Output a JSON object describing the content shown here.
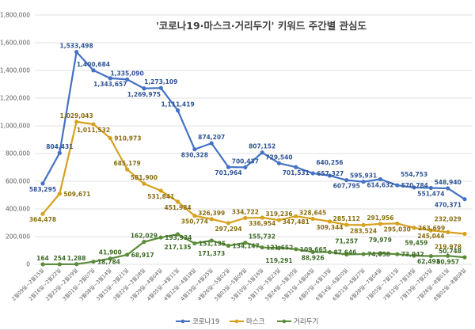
{
  "chart_data": {
    "type": "line",
    "title": "'코로나19·마스크·거리두기' 키워드 주간별 관심도",
    "xlabel": "",
    "ylabel": "",
    "ylim": [
      0,
      1800000
    ],
    "yticks": [
      0,
      200000,
      400000,
      600000,
      800000,
      1000000,
      1200000,
      1400000,
      1600000,
      1800000
    ],
    "ytick_labels": [
      "0",
      "200,000",
      "400,000",
      "600,000",
      "800,000",
      "1,000,000",
      "1,200,000",
      "1,400,000",
      "1,600,000",
      "1,800,000"
    ],
    "grid": "horizontal",
    "legend_position": "bottom",
    "categories": [
      "2월09일~2월15일",
      "2월16일~2월22일",
      "2월23일~2월29일",
      "3월01일~3월07일",
      "3월08일~3월14일",
      "3월15일~3월21일",
      "3월22일~3월28일",
      "3월29일~4월04일",
      "4월05일~4월11일",
      "4월12일~4월18일",
      "4월19일~4월25일",
      "4월26일~5월02일",
      "5월03일~5월09일",
      "5월10일~5월16일",
      "5월17일~5월23일",
      "5월24일~5월30일",
      "5월31일~6월06일",
      "6월07일~6월13일",
      "6월14일~6월20일",
      "6월21일~6월27일",
      "6월28일~7월04일",
      "7월05일~7월11일",
      "7월12일~7월18일",
      "7월19일~7월25일",
      "7월26일~8월01일",
      "8월02일~8월08일"
    ],
    "series": [
      {
        "name": "코로나19",
        "color": "#4472C4",
        "label_color": "#2F5496",
        "values": [
          583295,
          804431,
          1533498,
          1400684,
          1343657,
          1335090,
          1269975,
          1273109,
          1111419,
          830328,
          874207,
          701964,
          700437,
          807152,
          729540,
          701531,
          657327,
          640256,
          607795,
          595931,
          614632,
          570784,
          554753,
          551474,
          548940,
          470371
        ],
        "labels": [
          "583,295",
          "804,431",
          "1,533,498",
          "1,400,684",
          "1,343,657",
          "1,335,090",
          "1,269,975",
          "1,273,109",
          "1,111,419",
          "830,328",
          "874,207",
          "701,964",
          "700,437",
          "807,152",
          "729,540",
          "701,531",
          "657,327",
          "640,256",
          "607,795",
          "595,931",
          "614,632",
          "570,784",
          "554,753",
          "551,474",
          "548,940",
          "470,371"
        ]
      },
      {
        "name": "마스크",
        "color": "#D6A21E",
        "label_color": "#8A6D12",
        "values": [
          364478,
          509671,
          1029043,
          1011532,
          910973,
          685179,
          581900,
          531841,
          451984,
          350774,
          326399,
          297294,
          334722,
          336954,
          319236,
          347481,
          328645,
          309344,
          285112,
          283524,
          291956,
          295030,
          263699,
          245044,
          232029,
          219978
        ],
        "labels": [
          "364,478",
          "509,671",
          "1,029,043",
          "1,011,532",
          "910,973",
          "685,179",
          "581,900",
          "531,841",
          "451,984",
          "350,774",
          "326,399",
          "297,294",
          "334,722",
          "336,954",
          "319,236",
          "347,481",
          "328,645",
          "309,344",
          "285,112",
          "283,524",
          "291,956",
          "295,030",
          "263,699",
          "245,044",
          "232,029",
          "219,978"
        ]
      },
      {
        "name": "거리두기",
        "color": "#5B8C3A",
        "label_color": "#3D6B27",
        "values": [
          164,
          254,
          1288,
          18784,
          41900,
          68917,
          162029,
          193934,
          217135,
          151135,
          171373,
          134147,
          155732,
          121652,
          119291,
          109665,
          88926,
          87646,
          71257,
          74058,
          79979,
          73042,
          62493,
          59459,
          60957,
          50748
        ],
        "labels": [
          "164",
          "254",
          "1,288",
          "18,784",
          "41,900",
          "68,917",
          "162,029",
          "193,934",
          "217,135",
          "151,135",
          "171,373",
          "134,147",
          "155,732",
          "121,652",
          "119,291",
          "109,665",
          "88,926",
          "87,646",
          "71,257",
          "74,058",
          "79,979",
          "73,042",
          "62,493",
          "59,459",
          "60,957",
          "50,748"
        ]
      }
    ]
  }
}
